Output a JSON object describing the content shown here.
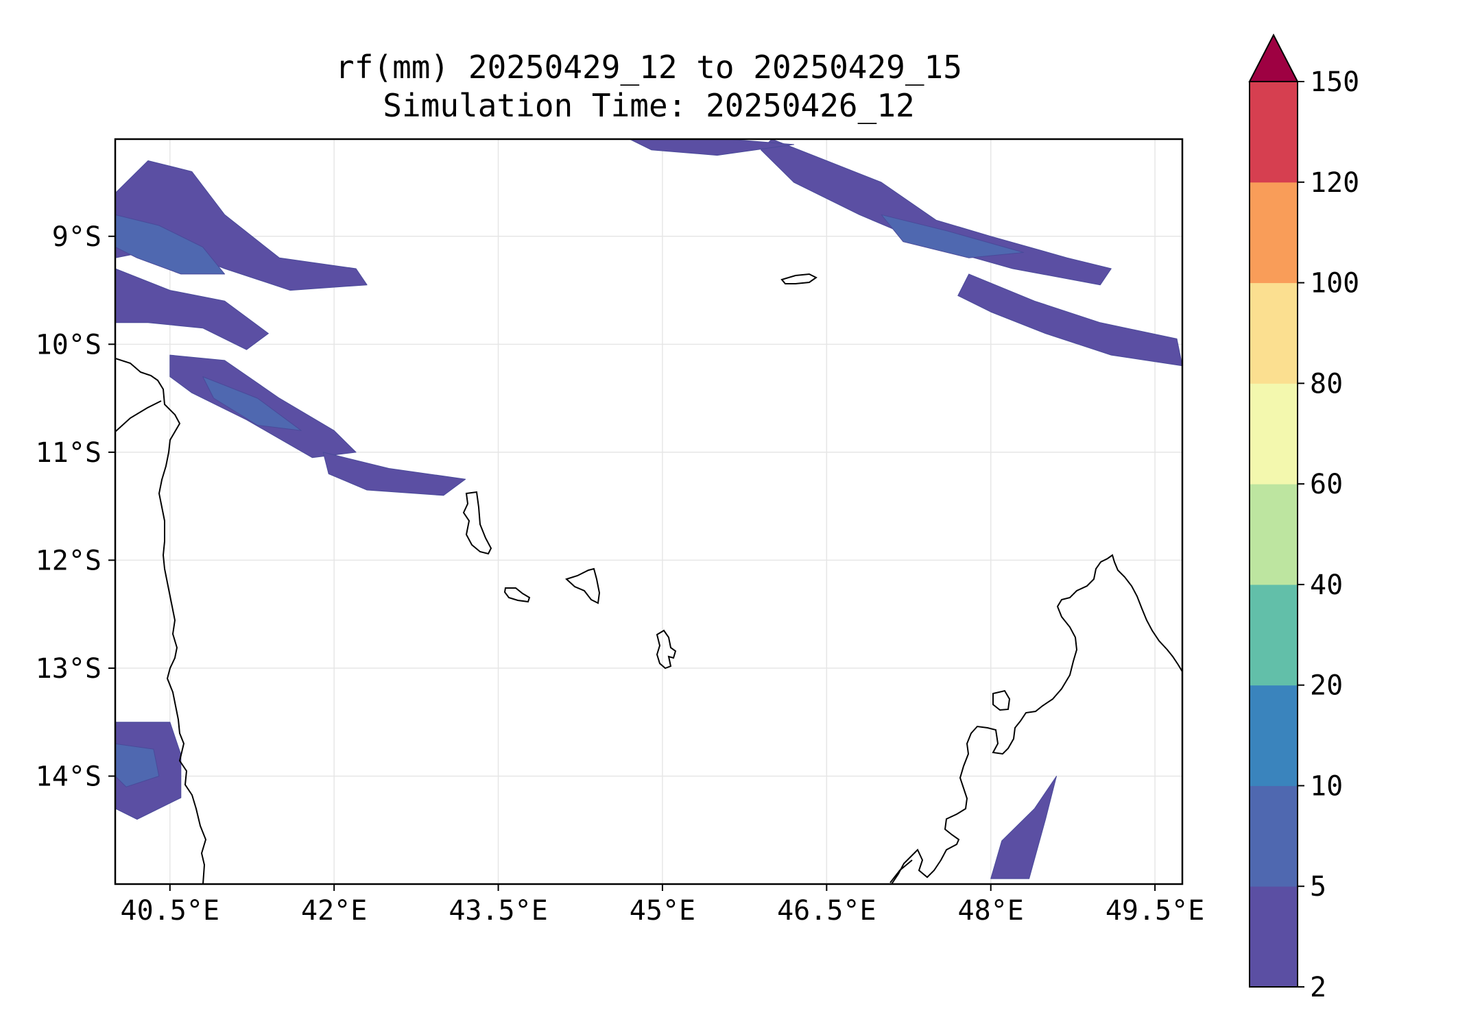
{
  "title": {
    "line1": "rf(mm) 20250429_12 to 20250429_15",
    "line2": "Simulation Time: 20250426_12"
  },
  "map": {
    "lon_range": [
      40.0,
      49.75
    ],
    "lat_range": [
      -15.0,
      -8.1
    ],
    "lon_ticks": [
      40.5,
      42.0,
      43.5,
      45.0,
      46.5,
      48.0,
      49.5
    ],
    "lon_tick_labels": [
      "40.5°E",
      "42°E",
      "43.5°E",
      "45°E",
      "46.5°E",
      "48°E",
      "49.5°E"
    ],
    "lat_ticks": [
      -9,
      -10,
      -11,
      -12,
      -13,
      -14
    ],
    "lat_tick_labels": [
      "9°S",
      "10°S",
      "11°S",
      "12°S",
      "13°S",
      "14°S"
    ],
    "gridlines": true
  },
  "colorbar": {
    "levels": [
      2,
      5,
      10,
      20,
      40,
      60,
      80,
      100,
      120,
      150
    ],
    "level_labels": [
      "2",
      "5",
      "10",
      "20",
      "40",
      "60",
      "80",
      "100",
      "120",
      "150"
    ],
    "colors": [
      "#5b4fa3",
      "#4f68b0",
      "#3a84bd",
      "#62bfa9",
      "#bde5a0",
      "#f3f8ae",
      "#fbdf90",
      "#f99d59",
      "#d63f50"
    ],
    "extend_color": "#9e0142",
    "extend": "max"
  },
  "chart_data": {
    "type": "heatmap",
    "variable": "rf(mm)",
    "valid_period": "20250429_12 to 20250429_15",
    "simulation_time": "20250426_12",
    "xlim": [
      40.0,
      49.75
    ],
    "ylim": [
      -15.0,
      -8.1
    ],
    "bands": [
      {
        "name": "band-north-west-1",
        "level": 5,
        "points": [
          [
            40.0,
            -8.6
          ],
          [
            40.3,
            -8.3
          ],
          [
            40.7,
            -8.4
          ],
          [
            41.0,
            -8.8
          ],
          [
            41.5,
            -9.2
          ],
          [
            42.2,
            -9.3
          ],
          [
            42.3,
            -9.45
          ],
          [
            41.6,
            -9.5
          ],
          [
            41.0,
            -9.3
          ],
          [
            40.5,
            -9.1
          ],
          [
            40.0,
            -9.2
          ]
        ]
      },
      {
        "name": "band-north-west-2",
        "level": 5,
        "points": [
          [
            40.0,
            -9.3
          ],
          [
            40.5,
            -9.5
          ],
          [
            41.0,
            -9.6
          ],
          [
            41.4,
            -9.9
          ],
          [
            41.2,
            -10.05
          ],
          [
            40.8,
            -9.85
          ],
          [
            40.3,
            -9.8
          ],
          [
            40.0,
            -9.8
          ]
        ]
      },
      {
        "name": "band-north-west-core",
        "level": 10,
        "points": [
          [
            40.0,
            -8.8
          ],
          [
            40.4,
            -8.9
          ],
          [
            40.8,
            -9.1
          ],
          [
            41.0,
            -9.35
          ],
          [
            40.6,
            -9.35
          ],
          [
            40.2,
            -9.2
          ],
          [
            40.0,
            -9.1
          ]
        ]
      },
      {
        "name": "band-west-mid",
        "level": 5,
        "points": [
          [
            40.5,
            -10.1
          ],
          [
            41.0,
            -10.15
          ],
          [
            41.5,
            -10.5
          ],
          [
            42.0,
            -10.8
          ],
          [
            42.2,
            -11.0
          ],
          [
            41.8,
            -11.05
          ],
          [
            41.2,
            -10.7
          ],
          [
            40.7,
            -10.45
          ],
          [
            40.5,
            -10.3
          ]
        ]
      },
      {
        "name": "band-west-mid-core",
        "level": 10,
        "points": [
          [
            40.8,
            -10.3
          ],
          [
            41.3,
            -10.5
          ],
          [
            41.7,
            -10.8
          ],
          [
            41.3,
            -10.75
          ],
          [
            40.9,
            -10.5
          ]
        ]
      },
      {
        "name": "band-west-south",
        "level": 5,
        "points": [
          [
            41.9,
            -11.0
          ],
          [
            42.5,
            -11.15
          ],
          [
            43.2,
            -11.25
          ],
          [
            43.0,
            -11.4
          ],
          [
            42.3,
            -11.35
          ],
          [
            41.95,
            -11.2
          ]
        ]
      },
      {
        "name": "band-north-east",
        "level": 5,
        "points": [
          [
            46.0,
            -8.1
          ],
          [
            46.5,
            -8.3
          ],
          [
            47.0,
            -8.5
          ],
          [
            47.5,
            -8.85
          ],
          [
            48.0,
            -9.0
          ],
          [
            48.7,
            -9.2
          ],
          [
            49.1,
            -9.3
          ],
          [
            49.0,
            -9.45
          ],
          [
            48.2,
            -9.3
          ],
          [
            47.5,
            -9.1
          ],
          [
            46.8,
            -8.8
          ],
          [
            46.2,
            -8.5
          ],
          [
            45.9,
            -8.2
          ]
        ]
      },
      {
        "name": "band-north-east-core",
        "level": 10,
        "points": [
          [
            47.0,
            -8.8
          ],
          [
            47.6,
            -8.95
          ],
          [
            48.3,
            -9.15
          ],
          [
            47.8,
            -9.2
          ],
          [
            47.2,
            -9.05
          ]
        ]
      },
      {
        "name": "band-east-mid",
        "level": 5,
        "points": [
          [
            47.8,
            -9.35
          ],
          [
            48.4,
            -9.6
          ],
          [
            49.0,
            -9.8
          ],
          [
            49.7,
            -9.95
          ],
          [
            49.75,
            -10.2
          ],
          [
            49.1,
            -10.1
          ],
          [
            48.5,
            -9.9
          ],
          [
            48.0,
            -9.7
          ],
          [
            47.7,
            -9.55
          ]
        ]
      },
      {
        "name": "band-north-top",
        "level": 5,
        "points": [
          [
            44.7,
            -8.1
          ],
          [
            45.6,
            -8.1
          ],
          [
            46.2,
            -8.15
          ],
          [
            45.5,
            -8.25
          ],
          [
            44.9,
            -8.2
          ]
        ]
      },
      {
        "name": "band-south-east",
        "level": 5,
        "points": [
          [
            48.4,
            -14.3
          ],
          [
            48.6,
            -14.0
          ],
          [
            48.5,
            -14.4
          ],
          [
            48.35,
            -14.95
          ],
          [
            48.0,
            -14.95
          ],
          [
            48.1,
            -14.6
          ]
        ]
      },
      {
        "name": "band-south-west",
        "level": 5,
        "points": [
          [
            40.0,
            -13.5
          ],
          [
            40.5,
            -13.5
          ],
          [
            40.6,
            -13.8
          ],
          [
            40.6,
            -14.2
          ],
          [
            40.2,
            -14.4
          ],
          [
            40.0,
            -14.3
          ]
        ]
      },
      {
        "name": "band-south-west-core",
        "level": 10,
        "points": [
          [
            40.0,
            -13.7
          ],
          [
            40.35,
            -13.75
          ],
          [
            40.4,
            -14.0
          ],
          [
            40.1,
            -14.1
          ],
          [
            40.0,
            -14.0
          ]
        ]
      }
    ]
  }
}
